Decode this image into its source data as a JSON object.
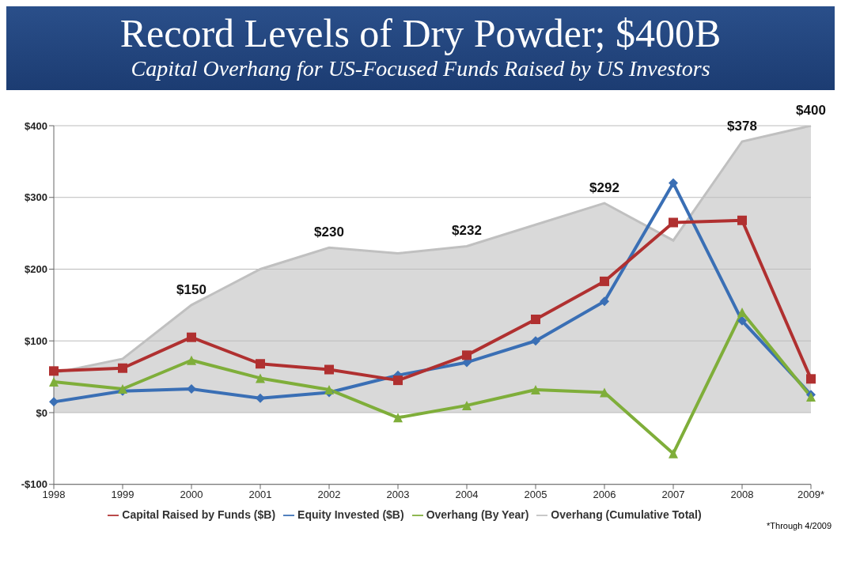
{
  "chart_data": {
    "type": "line",
    "title": "Record Levels of Dry Powder; $400B",
    "subtitle": "Capital Overhang for US-Focused Funds Raised by US Investors",
    "categories": [
      "1998",
      "1999",
      "2000",
      "2001",
      "2002",
      "2003",
      "2004",
      "2005",
      "2006",
      "2007",
      "2008",
      "2009*"
    ],
    "series": [
      {
        "name": "Overhang (Cumulative Total)",
        "type": "area",
        "color": "#c0c0c0",
        "marker": "none",
        "values": [
          55,
          75,
          150,
          200,
          230,
          222,
          232,
          262,
          292,
          240,
          378,
          400
        ]
      },
      {
        "name": "Equity Invested ($B)",
        "color": "#3a6fb5",
        "marker": "diamond",
        "values": [
          15,
          30,
          33,
          20,
          28,
          52,
          70,
          100,
          155,
          320,
          128,
          25
        ]
      },
      {
        "name": "Capital Raised by Funds ($B)",
        "color": "#b03030",
        "marker": "square",
        "values": [
          58,
          62,
          105,
          68,
          60,
          45,
          80,
          130,
          183,
          265,
          268,
          47
        ]
      },
      {
        "name": "Overhang (By Year)",
        "color": "#7fae3a",
        "marker": "triangle",
        "values": [
          43,
          33,
          73,
          48,
          32,
          -7,
          10,
          32,
          28,
          -57,
          140,
          22
        ]
      }
    ],
    "ylim": [
      -100,
      400
    ],
    "yticks": [
      {
        "value": -100,
        "label": "-$100"
      },
      {
        "value": 0,
        "label": "$0"
      },
      {
        "value": 100,
        "label": "$100"
      },
      {
        "value": 200,
        "label": "$200"
      },
      {
        "value": 300,
        "label": "$300"
      },
      {
        "value": 400,
        "label": "$400"
      }
    ],
    "grid": "y",
    "legend": "bottom",
    "annotations": [
      {
        "text": "$150",
        "x": "2000",
        "y": 150
      },
      {
        "text": "$230",
        "x": "2002",
        "y": 230
      },
      {
        "text": "$232",
        "x": "2004",
        "y": 232
      },
      {
        "text": "$292",
        "x": "2006",
        "y": 292
      },
      {
        "text": "$378",
        "x": "2008",
        "y": 378
      },
      {
        "text": "$400",
        "x": "2009*",
        "y": 400
      },
      "*Through 4/2009"
    ]
  }
}
